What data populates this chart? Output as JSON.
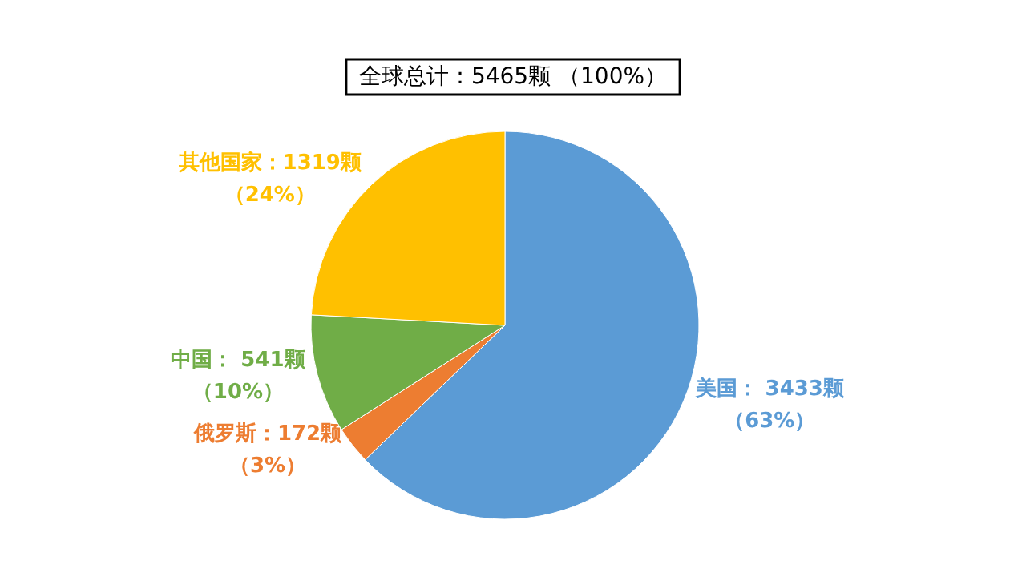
{
  "chart_data": {
    "type": "pie",
    "title": "全球总计：5465颗 （100%）",
    "categories": [
      "美国",
      "俄罗斯",
      "中国",
      "其他国家"
    ],
    "values": [
      3433,
      172,
      541,
      1319
    ],
    "colors": [
      "#5b9bd5",
      "#ed7d31",
      "#70ad47",
      "#ffc000"
    ],
    "value_labels": [
      "： 3433颗（63%）",
      "：172颗（3%）",
      "： 541颗（10%）",
      "：1319颗（24%）"
    ]
  }
}
